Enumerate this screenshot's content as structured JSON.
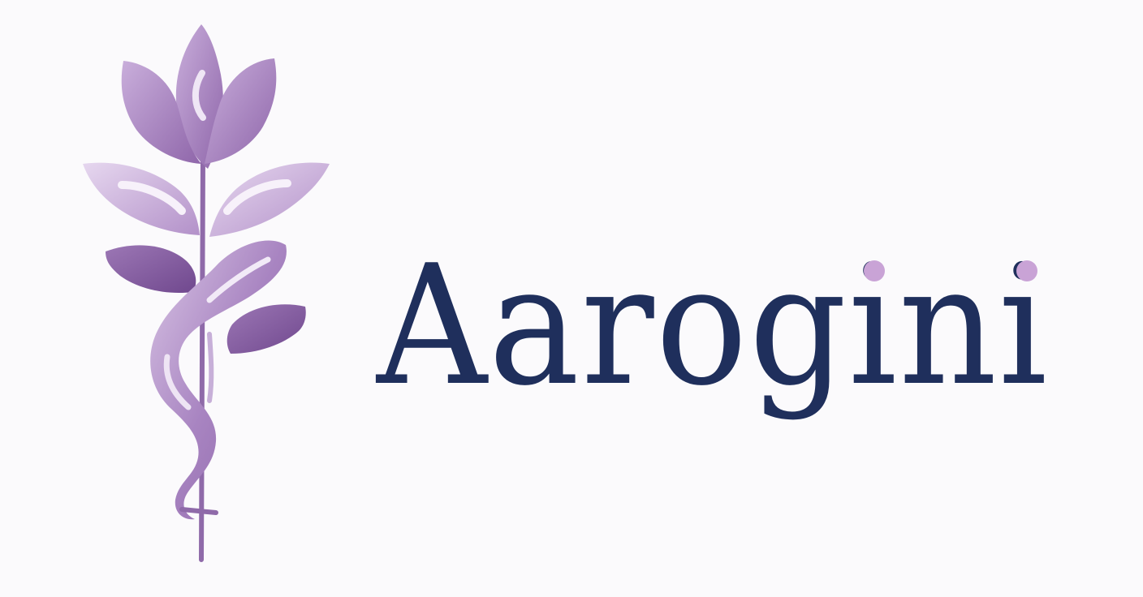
{
  "brand": {
    "name": "Aarogini",
    "wordmark_color": "#1f2f5c",
    "dot_color": "#c9a3d6"
  },
  "emblem": {
    "icon": "lotus-caduceus-icon",
    "colors": {
      "light": "#d8c2e3",
      "mid": "#a984c0",
      "dark": "#7b5497"
    }
  }
}
